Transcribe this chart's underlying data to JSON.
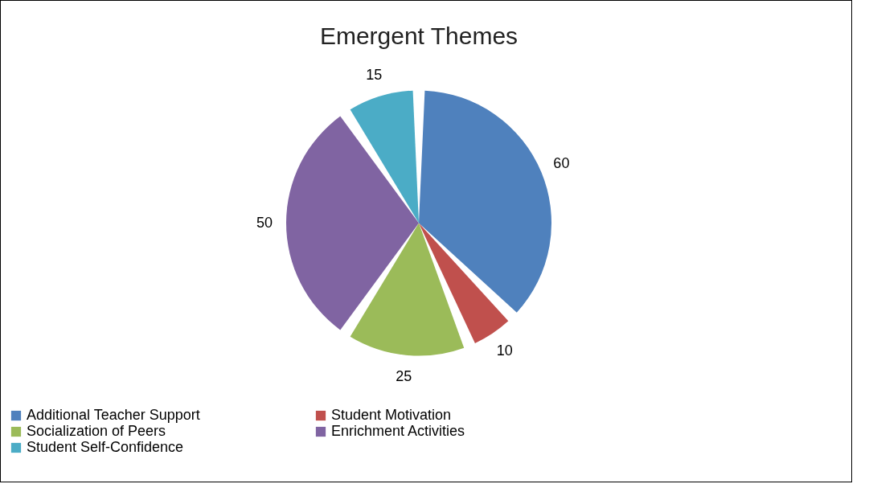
{
  "chart_data": {
    "type": "pie",
    "title": "Emergent Themes",
    "categories": [
      "Additional Teacher Support",
      "Student Motivation",
      "Socialization of Peers",
      "Enrichment Activities",
      "Student Self-Confidence"
    ],
    "values": [
      60,
      10,
      25,
      50,
      15
    ],
    "colors": [
      "#4f81bd",
      "#c0504d",
      "#9bbb59",
      "#8064a2",
      "#4bacc6"
    ],
    "data_labels": true,
    "legend": "bottom"
  }
}
